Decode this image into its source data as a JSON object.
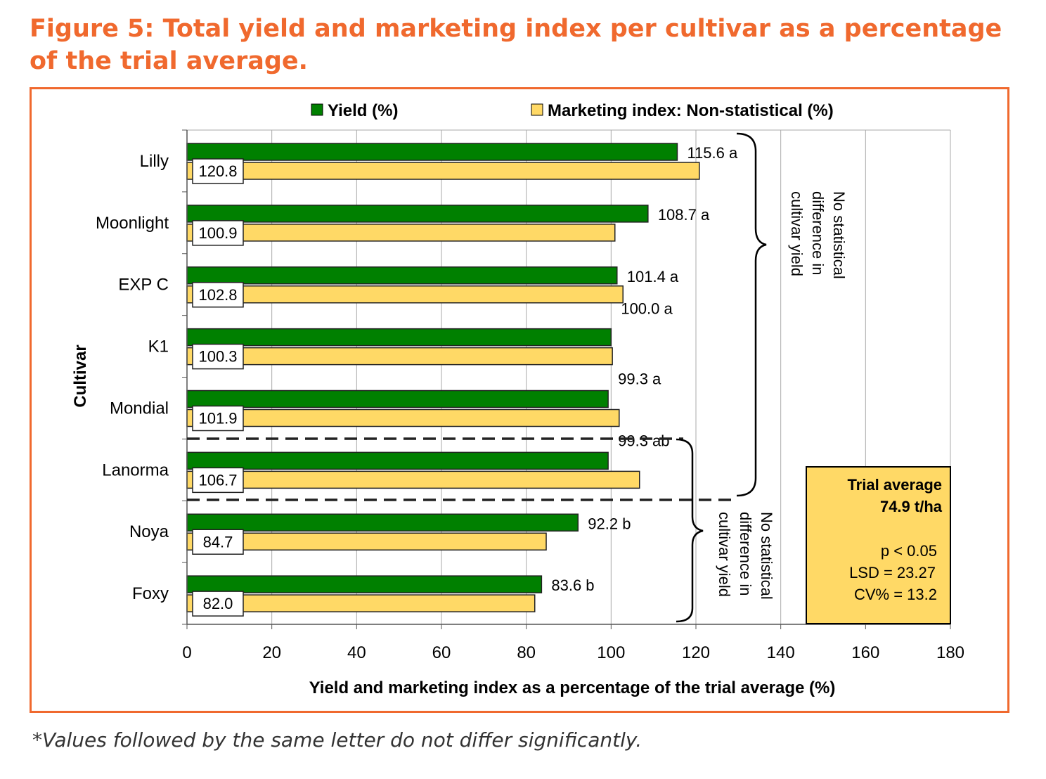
{
  "title": "Figure 5: Total yield and marketing index per cultivar as a percentage of the trial average.",
  "footnote": "*Values followed by the same letter do not differ significantly.",
  "colors": {
    "accent": "#F0692E",
    "yield": "#008000",
    "marketing": "#FFD966"
  },
  "chart_data": {
    "type": "bar",
    "orientation": "horizontal",
    "categories": [
      "Lilly",
      "Moonlight",
      "EXP C",
      "K1",
      "Mondial",
      "Lanorma",
      "Noya",
      "Foxy"
    ],
    "series": [
      {
        "name": "Yield (%)",
        "values": [
          115.6,
          108.7,
          101.4,
          100.0,
          99.3,
          99.3,
          92.2,
          83.6
        ],
        "labels": [
          "115.6 a",
          "108.7 a",
          "101.4 a",
          "100.0 a",
          "99.3 a",
          "99.3 ab",
          "92.2 b",
          "83.6 b"
        ]
      },
      {
        "name": "Marketing index: Non-statistical (%)",
        "values": [
          120.8,
          100.9,
          102.8,
          100.3,
          101.9,
          106.7,
          84.7,
          82.0
        ],
        "labels": [
          "120.8",
          "100.9",
          "102.8",
          "100.3",
          "101.9",
          "106.7",
          "84.7",
          "82.0"
        ]
      }
    ],
    "xlabel": "Yield and marketing index as a percentage of the trial average (%)",
    "ylabel": "Cultivar",
    "xlim": [
      0,
      180
    ],
    "xticks": [
      "0",
      "20",
      "40",
      "60",
      "80",
      "100",
      "120",
      "140",
      "160",
      "180"
    ],
    "grid": true,
    "legend": "top",
    "annotations": {
      "brace_upper": [
        "No statistical",
        "difference in",
        "cultivar yield"
      ],
      "brace_lower": [
        "No statistical",
        "difference in",
        "cultivar yield"
      ],
      "box": {
        "title1": "Trial average",
        "title2": "74.9 t/ha",
        "p": "p < 0.05",
        "lsd": "LSD = 23.27",
        "cv": "CV% = 13.2"
      }
    }
  }
}
